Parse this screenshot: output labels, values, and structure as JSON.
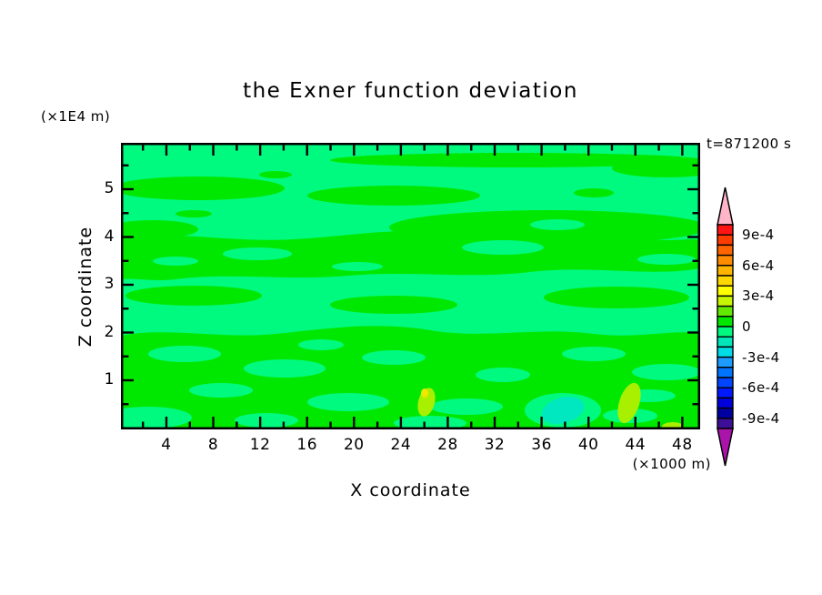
{
  "title": "the Exner function deviation",
  "timestamp": "t=871200 s",
  "x_axis": {
    "label": "X coordinate",
    "unit": "(×1000 m)",
    "ticks": [
      "4",
      "8",
      "12",
      "16",
      "20",
      "24",
      "28",
      "32",
      "36",
      "40",
      "44",
      "48"
    ]
  },
  "y_axis": {
    "label": "Z coordinate",
    "unit": "(×1E4 m)",
    "ticks": [
      "5",
      "4",
      "3",
      "2",
      "1"
    ]
  },
  "colorbar": {
    "labels": [
      "9e-4",
      "6e-4",
      "3e-4",
      "0",
      "-3e-4",
      "-6e-4",
      "-9e-4"
    ],
    "segment_colors": [
      "#ff1414",
      "#ff3c00",
      "#ff6400",
      "#ff8c00",
      "#ffb400",
      "#ffd700",
      "#ffff00",
      "#c8f500",
      "#64e800",
      "#00e800",
      "#00fa7f",
      "#00e6b8",
      "#00dce6",
      "#1e9bff",
      "#0073ff",
      "#0046ff",
      "#0019ff",
      "#0000dc",
      "#0000a0",
      "#3c0f96"
    ],
    "arrow_top_color": "#ffb4c8",
    "arrow_bottom_color": "#aa14aa"
  },
  "colors": {
    "background": "#ffffff",
    "axis": "#000000",
    "positive_green": "#00e800",
    "negative_green": "#00fa7f",
    "spot_chartreuse": "#a8f000",
    "spot_yellow": "#f0e800",
    "spot_cyan": "#00e8c0"
  },
  "chart_data": {
    "type": "heatmap",
    "title": "the Exner function deviation",
    "time_annotation": "t=871200 s",
    "xlabel": "X coordinate",
    "x_unit": "(×1000 m)",
    "x_range": [
      0,
      49.5
    ],
    "x_ticks": [
      4,
      8,
      12,
      16,
      20,
      24,
      28,
      32,
      36,
      40,
      44,
      48
    ],
    "x_minor_tick_step": 2,
    "ylabel": "Z coordinate",
    "y_unit": "(×1E4 m)",
    "y_range": [
      0,
      6
    ],
    "y_ticks": [
      1,
      2,
      3,
      4,
      5
    ],
    "y_minor_tick_step": 0.5,
    "grid": false,
    "legend_position": "right-colorbar",
    "contour_interval": 0.0001,
    "level_min": -0.001,
    "level_max": 0.001,
    "labeled_levels": [
      0.0009,
      0.0006,
      0.0003,
      0,
      -0.0003,
      -0.0006,
      -0.0009
    ],
    "field_summary": {
      "description": "Exner function deviation field; nearly the whole domain lies in the two bands adjacent to zero, drawn as interleaved horizontal streaky blobs",
      "band_0_to_+1e-4": "bright green, dominant in middle band (z≈2-4) and mottled lower region (z<2)",
      "band_-1e-4_to_0": "spring green, dominant near top (z≈4.5-6) and in lanes between green streaks",
      "local_features": [
        {
          "x": 25.7,
          "z": 0.55,
          "value": "+1e-4 to +3e-4 (chartreuse/yellow spot)"
        },
        {
          "x": 37.8,
          "z": 0.35,
          "value": "-2e-4 (pale cyan patch)"
        },
        {
          "x": 43.3,
          "z": 0.55,
          "value": "+1e-4 to +2e-4 (chartreuse diagonal streak)"
        },
        {
          "x": 46.4,
          "z": 0.1,
          "value": "+1e-4 to +2e-4 (small chartreuse sliver at bottom edge)"
        }
      ]
    }
  }
}
